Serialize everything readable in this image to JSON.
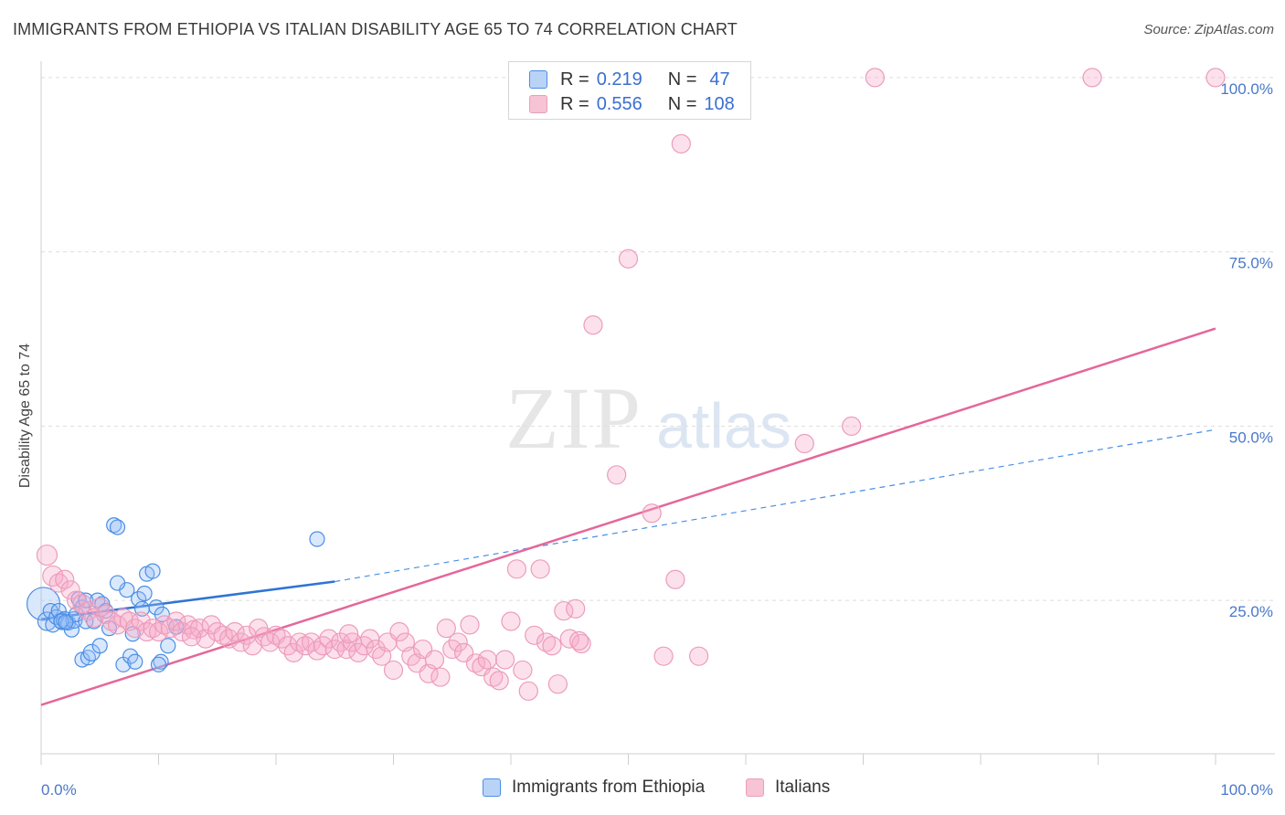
{
  "title": "IMMIGRANTS FROM ETHIOPIA VS ITALIAN DISABILITY AGE 65 TO 74 CORRELATION CHART",
  "source": "Source: ZipAtlas.com",
  "watermark": {
    "zip": "ZIP",
    "atlas": "atlas"
  },
  "colors": {
    "blue": "#4a8ee6",
    "blue_fill": "#a9c8f5",
    "pink": "#e86b9a",
    "pink_fill": "#f5b8cc",
    "tick": "#4a78c8",
    "grid": "#dddddd"
  },
  "legend_top": [
    {
      "r_label": "R =",
      "r_value": "0.219",
      "n_label": "N =",
      "n_value": "47"
    },
    {
      "r_label": "R =",
      "r_value": "0.556",
      "n_label": "N =",
      "n_value": "108"
    }
  ],
  "chart_data": {
    "type": "scatter",
    "xlabel": "",
    "ylabel": "Disability Age 65 to 74",
    "xlim": [
      0,
      100
    ],
    "ylim": [
      3,
      103
    ],
    "x_tick_labels": [
      "0.0%",
      "100.0%"
    ],
    "y_ticks": [
      25,
      50,
      75,
      100
    ],
    "y_tick_labels": [
      "25.0%",
      "50.0%",
      "75.0%",
      "100.0%"
    ],
    "grid": "horizontal dashed",
    "legend": "bottom-center",
    "series": [
      {
        "name": "Immigrants from Ethiopia",
        "color": "#4a8ee6",
        "trend": {
          "x0": 0,
          "y0": 22.3,
          "x1": 25,
          "y1": 27.7,
          "dashed_to_x": 100,
          "dashed_to_y": 49.5
        },
        "points": [
          [
            0.2,
            24.5,
            18
          ],
          [
            0.5,
            22.0,
            10
          ],
          [
            0.8,
            23.5,
            8
          ],
          [
            1.0,
            21.5,
            8
          ],
          [
            1.3,
            22.6,
            8
          ],
          [
            1.5,
            23.5,
            8
          ],
          [
            1.8,
            22.0,
            9
          ],
          [
            2.0,
            22.2,
            9
          ],
          [
            2.3,
            21.8,
            8
          ],
          [
            2.6,
            20.8,
            8
          ],
          [
            2.8,
            22.2,
            9
          ],
          [
            3.0,
            23.0,
            8
          ],
          [
            3.2,
            25.2,
            8
          ],
          [
            3.5,
            24.0,
            8
          ],
          [
            3.8,
            22.0,
            8
          ],
          [
            3.5,
            16.5,
            8
          ],
          [
            3.8,
            25.0,
            8
          ],
          [
            4.0,
            16.8,
            8
          ],
          [
            4.3,
            17.5,
            9
          ],
          [
            4.5,
            22.0,
            8
          ],
          [
            4.8,
            25.0,
            8
          ],
          [
            5.0,
            18.5,
            8
          ],
          [
            5.2,
            24.5,
            8
          ],
          [
            5.5,
            23.5,
            8
          ],
          [
            5.8,
            21.0,
            8
          ],
          [
            6.2,
            35.8,
            8
          ],
          [
            7.0,
            15.8,
            8
          ],
          [
            7.3,
            26.5,
            8
          ],
          [
            7.6,
            17.0,
            8
          ],
          [
            7.8,
            20.2,
            8
          ],
          [
            6.5,
            27.5,
            8
          ],
          [
            8.0,
            16.2,
            8
          ],
          [
            8.3,
            25.2,
            8
          ],
          [
            8.6,
            23.8,
            8
          ],
          [
            9.0,
            28.8,
            8
          ],
          [
            9.5,
            29.2,
            8
          ],
          [
            9.8,
            24.0,
            8
          ],
          [
            10.2,
            16.2,
            8
          ],
          [
            10.8,
            18.5,
            8
          ],
          [
            10.0,
            15.8,
            8
          ],
          [
            10.3,
            23.0,
            8
          ],
          [
            6.5,
            35.5,
            8
          ],
          [
            8.8,
            26.0,
            8
          ],
          [
            1.7,
            22.0,
            8
          ],
          [
            2.1,
            21.9,
            8
          ],
          [
            11.5,
            21.2,
            8
          ],
          [
            23.5,
            33.8,
            8
          ]
        ]
      },
      {
        "name": "Italians",
        "color": "#e86b9a",
        "trend": {
          "x0": 0,
          "y0": 10.0,
          "x1": 100,
          "y1": 64.0
        },
        "points": [
          [
            0.5,
            31.5,
            11
          ],
          [
            1.0,
            28.5,
            11
          ],
          [
            1.5,
            27.5,
            10
          ],
          [
            2.0,
            28.0,
            10
          ],
          [
            2.5,
            26.5,
            10
          ],
          [
            3.0,
            25.0,
            10
          ],
          [
            3.5,
            24.5,
            10
          ],
          [
            4.0,
            23.5,
            10
          ],
          [
            4.5,
            22.5,
            10
          ],
          [
            5.0,
            24.0,
            10
          ],
          [
            5.5,
            23.0,
            10
          ],
          [
            6.0,
            22.0,
            10
          ],
          [
            6.5,
            21.5,
            10
          ],
          [
            7.0,
            22.5,
            10
          ],
          [
            7.5,
            22.0,
            10
          ],
          [
            8.0,
            21.0,
            10
          ],
          [
            8.5,
            22.0,
            10
          ],
          [
            9.0,
            20.5,
            10
          ],
          [
            9.5,
            21.0,
            10
          ],
          [
            10.0,
            20.5,
            10
          ],
          [
            10.5,
            21.5,
            10
          ],
          [
            11.0,
            21.0,
            10
          ],
          [
            11.5,
            22.0,
            10
          ],
          [
            12.0,
            20.5,
            10
          ],
          [
            12.5,
            21.5,
            10
          ],
          [
            13.0,
            20.8,
            10
          ],
          [
            13.5,
            21.0,
            10
          ],
          [
            14.0,
            19.5,
            10
          ],
          [
            14.5,
            21.5,
            10
          ],
          [
            15.0,
            20.5,
            10
          ],
          [
            15.5,
            20.0,
            10
          ],
          [
            16.0,
            19.5,
            10
          ],
          [
            16.5,
            20.5,
            10
          ],
          [
            17.0,
            19.0,
            10
          ],
          [
            17.5,
            20.0,
            10
          ],
          [
            18.0,
            18.5,
            10
          ],
          [
            18.5,
            21.0,
            10
          ],
          [
            19.0,
            19.8,
            10
          ],
          [
            19.5,
            19.0,
            10
          ],
          [
            20.0,
            20.0,
            10
          ],
          [
            20.5,
            19.5,
            10
          ],
          [
            21.0,
            18.5,
            10
          ],
          [
            21.5,
            17.5,
            10
          ],
          [
            22.0,
            19.0,
            10
          ],
          [
            22.5,
            18.5,
            10
          ],
          [
            23.0,
            19.0,
            10
          ],
          [
            23.5,
            17.8,
            10
          ],
          [
            24.0,
            18.5,
            10
          ],
          [
            24.5,
            19.5,
            10
          ],
          [
            25.0,
            18.0,
            10
          ],
          [
            25.5,
            19.0,
            10
          ],
          [
            26.0,
            18.0,
            10
          ],
          [
            26.5,
            19.0,
            10
          ],
          [
            27.0,
            17.5,
            10
          ],
          [
            27.5,
            18.5,
            10
          ],
          [
            28.0,
            19.5,
            10
          ],
          [
            28.5,
            18.0,
            10
          ],
          [
            29.0,
            17.0,
            10
          ],
          [
            29.5,
            19.0,
            10
          ],
          [
            30.0,
            15.0,
            10
          ],
          [
            30.5,
            20.5,
            10
          ],
          [
            31.0,
            19.0,
            10
          ],
          [
            31.5,
            17.0,
            10
          ],
          [
            32.0,
            16.0,
            10
          ],
          [
            32.5,
            18.0,
            10
          ],
          [
            33.0,
            14.5,
            10
          ],
          [
            33.5,
            16.5,
            10
          ],
          [
            34.0,
            14.0,
            10
          ],
          [
            34.5,
            21.0,
            10
          ],
          [
            35.0,
            18.0,
            10
          ],
          [
            35.5,
            19.0,
            10
          ],
          [
            36.0,
            17.5,
            10
          ],
          [
            36.5,
            21.5,
            10
          ],
          [
            37.0,
            16.0,
            10
          ],
          [
            37.5,
            15.5,
            10
          ],
          [
            38.0,
            16.5,
            10
          ],
          [
            38.5,
            14.0,
            10
          ],
          [
            39.0,
            13.5,
            10
          ],
          [
            39.5,
            16.5,
            10
          ],
          [
            40.0,
            22.0,
            10
          ],
          [
            40.5,
            29.5,
            10
          ],
          [
            41.0,
            15.0,
            10
          ],
          [
            41.5,
            12.0,
            10
          ],
          [
            42.0,
            20.0,
            10
          ],
          [
            42.5,
            29.5,
            10
          ],
          [
            43.0,
            19.0,
            10
          ],
          [
            43.5,
            18.5,
            10
          ],
          [
            44.0,
            13.0,
            10
          ],
          [
            44.5,
            23.5,
            10
          ],
          [
            45.0,
            19.5,
            10
          ],
          [
            45.5,
            23.8,
            10
          ],
          [
            46.0,
            18.8,
            10
          ],
          [
            47.0,
            64.5,
            10
          ],
          [
            49.0,
            43.0,
            10
          ],
          [
            50.0,
            74.0,
            10
          ],
          [
            52.0,
            37.5,
            10
          ],
          [
            53.0,
            17.0,
            10
          ],
          [
            54.0,
            28.0,
            10
          ],
          [
            54.5,
            90.5,
            10
          ],
          [
            56.0,
            17.0,
            10
          ],
          [
            65.0,
            47.5,
            10
          ],
          [
            69.0,
            50.0,
            10
          ],
          [
            71.0,
            100.0,
            10
          ],
          [
            89.5,
            100.0,
            10
          ],
          [
            100.0,
            100.0,
            10
          ],
          [
            45.8,
            19.2,
            10
          ],
          [
            12.8,
            19.8,
            10
          ],
          [
            26.2,
            20.2,
            10
          ]
        ]
      }
    ]
  },
  "legend_bottom": [
    {
      "label": "Immigrants from Ethiopia"
    },
    {
      "label": "Italians"
    }
  ]
}
